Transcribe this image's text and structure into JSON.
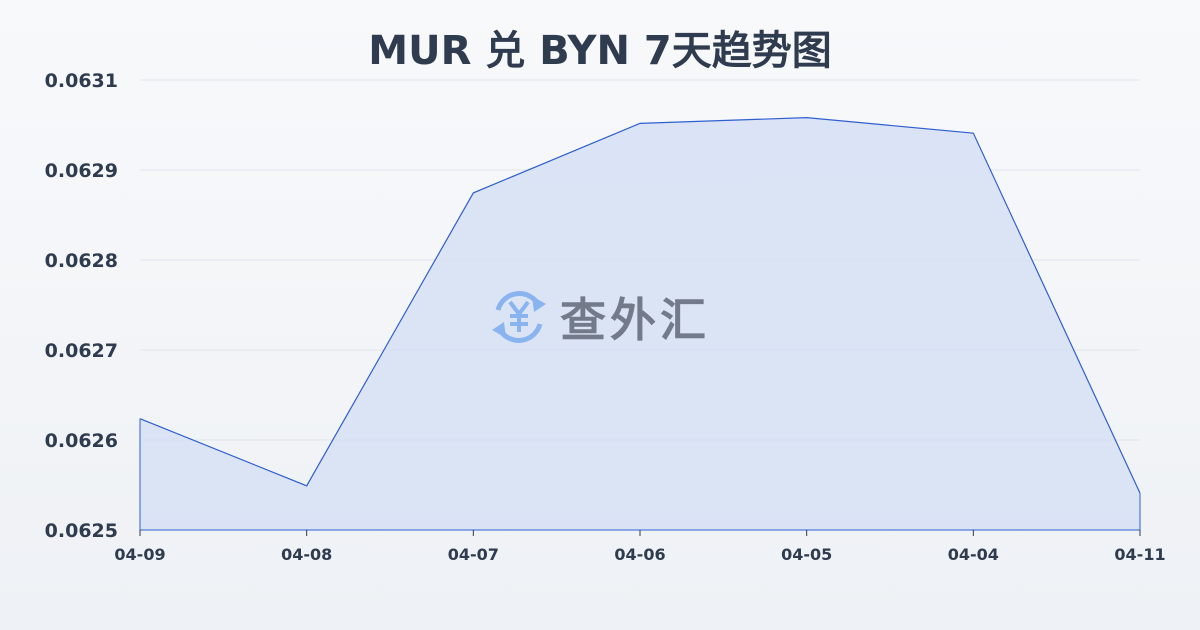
{
  "chart_data": {
    "type": "area",
    "title": "MUR 兑 BYN 7天趋势图",
    "categories": [
      "04-09",
      "04-08",
      "04-07",
      "04-06",
      "04-05",
      "04-04",
      "04-11"
    ],
    "values": [
      0.062636,
      0.062554,
      0.062912,
      0.062997,
      0.063004,
      0.062985,
      0.062545
    ],
    "y_tick_labels": [
      "0.0625",
      "0.0626",
      "0.0627",
      "0.0628",
      "0.0629",
      "0.0631"
    ],
    "ylim": [
      0.0625,
      0.06305
    ],
    "grid": true,
    "line_color": "#2f5fd0",
    "fill_color": "#d6e0f5"
  },
  "watermark": {
    "text": "查外汇",
    "icon": "yen-exchange-icon",
    "icon_color": "#8ab4f0"
  }
}
